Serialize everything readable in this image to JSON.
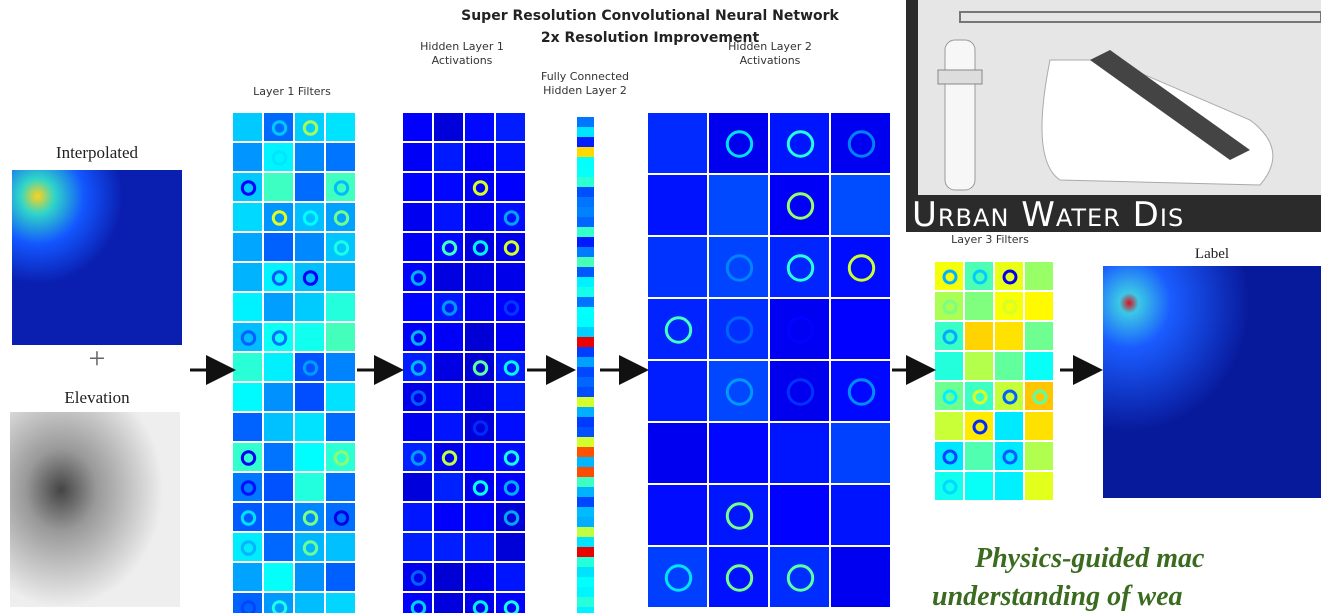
{
  "title": "Super Resolution Convolutional Neural Network",
  "subtitle": "2x Resolution Improvement",
  "inputs": {
    "interpolated": "Interpolated",
    "elevation": "Elevation",
    "plus": "+"
  },
  "layers": {
    "layer1_filters": "Layer 1 Filters",
    "hidden_layer1": [
      "Hidden Layer 1",
      "Activations"
    ],
    "fully_connected": [
      "Fully Connected",
      "Hidden Layer 2"
    ],
    "hidden_layer2": [
      "Hidden Layer 2",
      "Activations"
    ],
    "layer3_filters": "Layer 3 Filters",
    "label": "Label"
  },
  "banner": "Urban Water Dis",
  "caption": [
    "Physics-guided mac",
    "understanding of wea"
  ]
}
